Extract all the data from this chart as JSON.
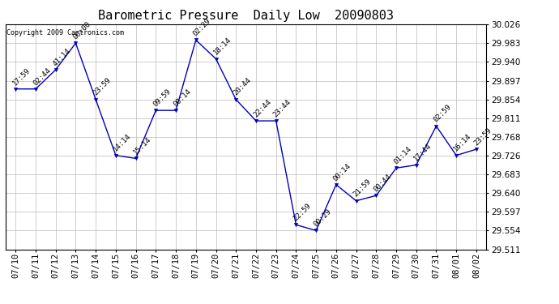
{
  "title": "Barometric Pressure  Daily Low  20090803",
  "copyright": "Copyright 2009 Cartronics.com",
  "dates": [
    "07/10",
    "07/11",
    "07/12",
    "07/13",
    "07/14",
    "07/15",
    "07/16",
    "07/17",
    "07/18",
    "07/19",
    "07/20",
    "07/21",
    "07/22",
    "07/23",
    "07/24",
    "07/25",
    "07/26",
    "07/27",
    "07/28",
    "07/29",
    "07/30",
    "07/31",
    "08/01",
    "08/02"
  ],
  "values": [
    29.878,
    29.878,
    29.922,
    29.983,
    29.854,
    29.726,
    29.719,
    29.829,
    29.829,
    29.99,
    29.947,
    29.854,
    29.805,
    29.805,
    29.567,
    29.554,
    29.659,
    29.622,
    29.634,
    29.697,
    29.704,
    29.793,
    29.726,
    29.74
  ],
  "annotations": [
    "17:59",
    "02:44",
    "41:14",
    "00:00",
    "23:59",
    "14:14",
    "15:14",
    "09:59",
    "00:14",
    "02:29",
    "18:14",
    "20:44",
    "22:44",
    "23:44",
    "22:59",
    "00:29",
    "00:14",
    "21:59",
    "00:44",
    "01:14",
    "17:44",
    "02:59",
    "16:14",
    "23:59"
  ],
  "line_color": "#0000bb",
  "marker_color": "#0000bb",
  "background_color": "#ffffff",
  "grid_color": "#bbbbbb",
  "ylim": [
    29.511,
    30.026
  ],
  "yticks": [
    29.511,
    29.554,
    29.597,
    29.64,
    29.683,
    29.726,
    29.768,
    29.811,
    29.854,
    29.897,
    29.94,
    29.983,
    30.026
  ],
  "title_fontsize": 11,
  "annotation_fontsize": 6.5,
  "xlabel_fontsize": 7.5,
  "ylabel_fontsize": 7.5
}
